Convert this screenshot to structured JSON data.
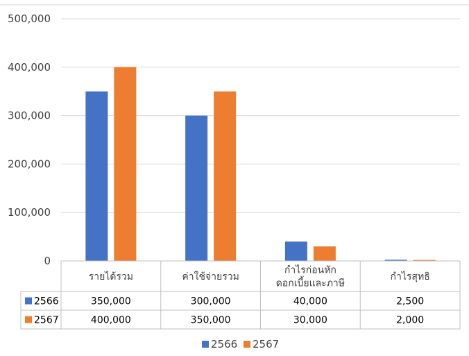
{
  "chart_data": {
    "type": "bar",
    "categories": [
      [
        "รายได้รวม"
      ],
      [
        "ค่าใช้จ่ายรวม"
      ],
      [
        "กำไรก่อนหัก",
        "ดอกเบี้ยและภาษี"
      ],
      [
        "กำไรสุทธิ"
      ]
    ],
    "series": [
      {
        "name": "2566",
        "color": "#4472C4",
        "values": [
          350000,
          300000,
          40000,
          2500
        ],
        "table_values": [
          "350,000",
          "300,000",
          "40,000",
          "2,500"
        ]
      },
      {
        "name": "2567",
        "color": "#ED7D31",
        "values": [
          400000,
          350000,
          30000,
          2000
        ],
        "table_values": [
          "400,000",
          "350,000",
          "30,000",
          "2,000"
        ]
      }
    ],
    "ylim": [
      0,
      500000
    ],
    "yticks": [
      "0",
      "100,000",
      "200,000",
      "300,000",
      "400,000",
      "500,000"
    ],
    "grid": true,
    "data_table": true,
    "legend_position": "bottom"
  }
}
